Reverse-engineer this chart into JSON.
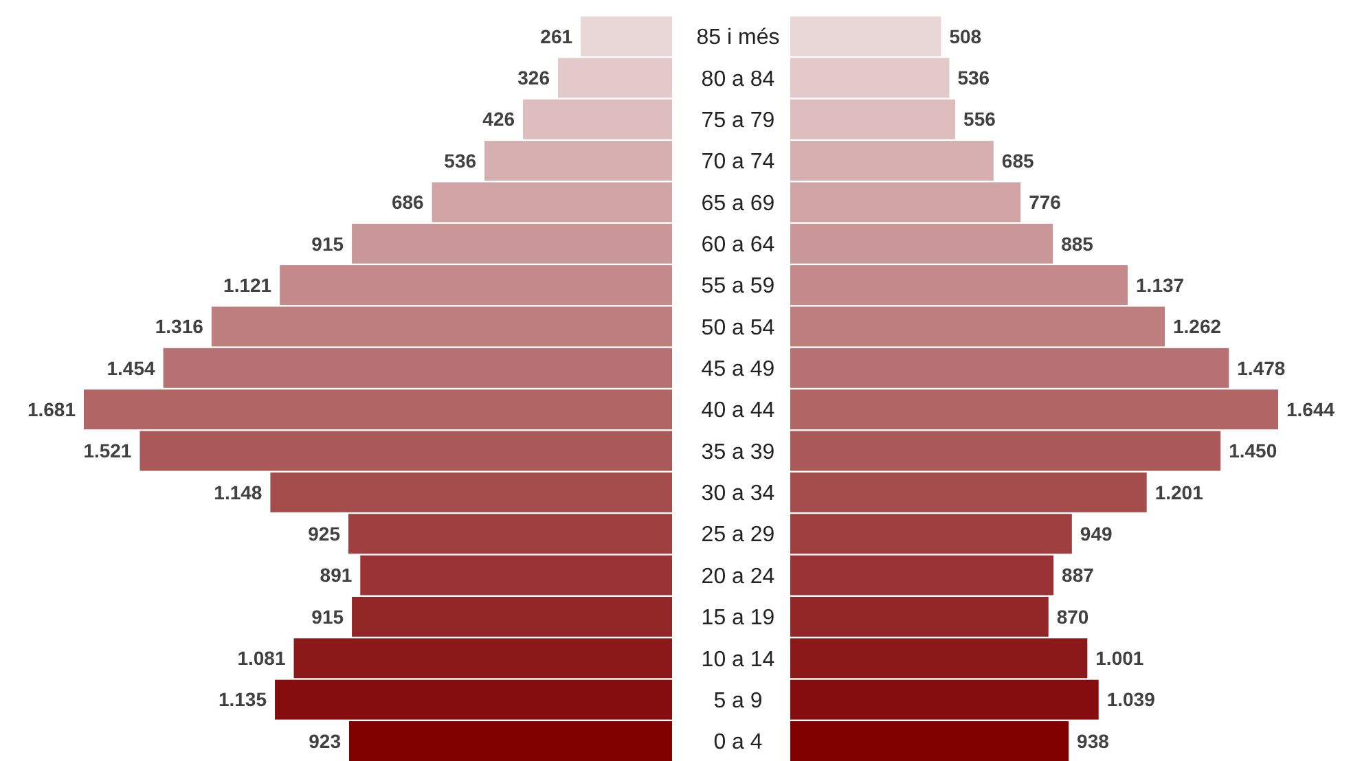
{
  "chart_data": [
    {
      "type": "bar",
      "orientation": "horizontal",
      "tick_labels": false,
      "categories": [
        "85 i més",
        "80 a 84",
        "75 a 79",
        "70 a 74",
        "65 a 69",
        "60 a 64",
        "55 a 59",
        "50 a 54",
        "45 a 49",
        "40 a 44",
        "35 a 39",
        "30 a 34",
        "25 a 29",
        "20 a 24",
        "15 a 19",
        "10 a 14",
        "5 a 9",
        "0 a 4"
      ],
      "values": [
        261,
        326,
        426,
        536,
        686,
        915,
        1121,
        1316,
        1454,
        1681,
        1521,
        1148,
        925,
        891,
        915,
        1081,
        1135,
        923
      ],
      "value_labels": [
        "261",
        "326",
        "426",
        "536",
        "686",
        "915",
        "1.121",
        "1.316",
        "1.454",
        "1.681",
        "1.521",
        "1.148",
        "925",
        "891",
        "915",
        "1.081",
        "1.135",
        "923"
      ],
      "colors": [
        "#e9d6d7",
        "#e3c9ca",
        "#ddbdbe",
        "#d6b0b1",
        "#d0a4a4",
        "#ca9798",
        "#c48a8b",
        "#be7e7e",
        "#b87172",
        "#b16565",
        "#ab5859",
        "#a54c4c",
        "#9f3f3f",
        "#993233",
        "#932626",
        "#8c1919",
        "#860d0d",
        "#800000"
      ]
    },
    {
      "type": "bar",
      "orientation": "horizontal",
      "tick_labels": "y",
      "categories": [
        "85 i més",
        "80 a 84",
        "75 a 79",
        "70 a 74",
        "65 a 69",
        "60 a 64",
        "55 a 59",
        "50 a 54",
        "45 a 49",
        "40 a 44",
        "35 a 39",
        "30 a 34",
        "25 a 29",
        "20 a 24",
        "15 a 19",
        "10 a 14",
        "5 a 9",
        "0 a 4"
      ],
      "values": [
        508,
        536,
        556,
        685,
        776,
        885,
        1137,
        1262,
        1478,
        1644,
        1450,
        1201,
        949,
        887,
        870,
        1001,
        1039,
        938
      ],
      "value_labels": [
        "508",
        "536",
        "556",
        "685",
        "776",
        "885",
        "1.137",
        "1.262",
        "1.478",
        "1.644",
        "1.450",
        "1.201",
        "949",
        "887",
        "870",
        "1.001",
        "1.039",
        "938"
      ],
      "colors": [
        "#e9d6d7",
        "#e3c9ca",
        "#ddbdbe",
        "#d6b0b1",
        "#d0a4a4",
        "#ca9798",
        "#c48a8b",
        "#be7e7e",
        "#b87172",
        "#b16565",
        "#ab5859",
        "#a54c4c",
        "#9f3f3f",
        "#993233",
        "#932626",
        "#8c1919",
        "#860d0d",
        "#800000"
      ]
    }
  ]
}
